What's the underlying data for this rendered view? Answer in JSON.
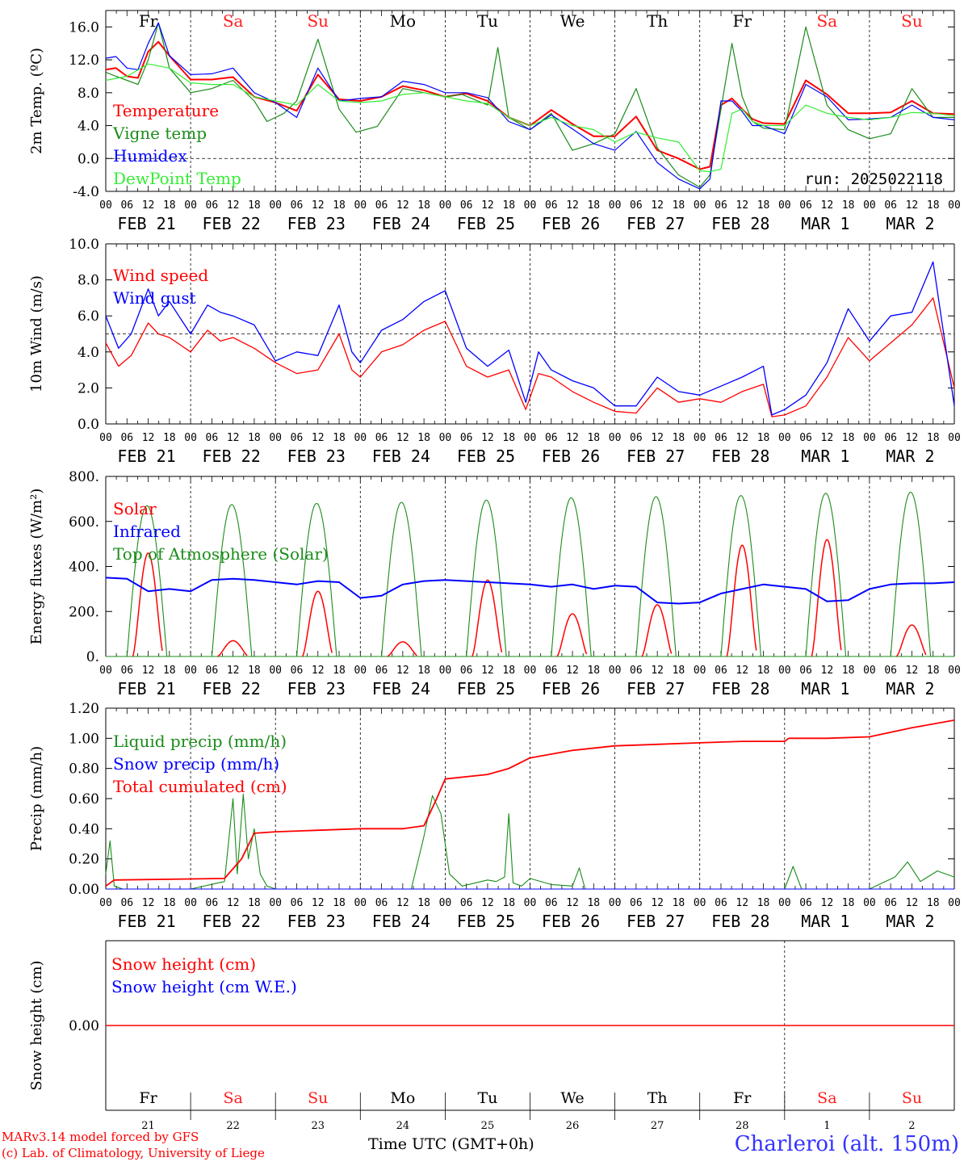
{
  "footer": {
    "model_credit": "MARv3.14 model forced by GFS",
    "lab_credit": "(c) Lab. of Climatology, University of Liege",
    "time_axis_label": "Time UTC (GMT+0h)",
    "station": "Charleroi (alt. 150m)"
  },
  "colors": {
    "red": "#ff0000",
    "green": "#1a8c1a",
    "blue": "#0000ff",
    "lightgreen": "#33ee33",
    "weekend": "#ff2020",
    "grid": "#000000"
  },
  "time_axis": {
    "hour_ticks": [
      "00",
      "06",
      "12",
      "18"
    ],
    "days": [
      "FEB 21",
      "FEB 22",
      "FEB 23",
      "FEB 24",
      "FEB 25",
      "FEB 26",
      "FEB 27",
      "FEB 28",
      "MAR  1",
      "MAR  2"
    ],
    "weekdays": [
      "Fr",
      "Sa",
      "Su",
      "Mo",
      "Tu",
      "We",
      "Th",
      "Fr",
      "Sa",
      "Su"
    ],
    "weekend_flags": [
      false,
      true,
      true,
      false,
      false,
      false,
      false,
      false,
      true,
      true
    ],
    "day_numbers": [
      "21",
      "22",
      "23",
      "24",
      "25",
      "26",
      "27",
      "28",
      "1",
      "2"
    ]
  },
  "chart_data": [
    {
      "type": "line",
      "ylabel": "2m Temp. (ºC)",
      "ylim": [
        -4,
        18
      ],
      "yticks": [
        "-4.0",
        "0.0",
        "4.0",
        "8.0",
        "12.0",
        "16.0"
      ],
      "ytick_values": [
        -4,
        0,
        4,
        8,
        12,
        16
      ],
      "annotation": "run: 2025022118",
      "x_unit": "days from FEB 21 00 UTC",
      "series": [
        {
          "name": "Temperature",
          "color": "red",
          "x": [
            0,
            0.12,
            0.25,
            0.38,
            0.5,
            0.62,
            0.75,
            1.0,
            1.25,
            1.5,
            1.75,
            2.0,
            2.25,
            2.5,
            2.75,
            3.0,
            3.25,
            3.5,
            3.75,
            4.0,
            4.25,
            4.5,
            4.75,
            5.0,
            5.25,
            5.5,
            5.75,
            6.0,
            6.25,
            6.5,
            6.75,
            7.0,
            7.12,
            7.25,
            7.38,
            7.5,
            7.62,
            7.75,
            8.0,
            8.25,
            8.5,
            8.75,
            9.0,
            9.25,
            9.5,
            9.75,
            10.0
          ],
          "y": [
            10.8,
            11,
            10,
            9.8,
            13,
            14.2,
            12.5,
            9.6,
            9.6,
            9.9,
            7.5,
            6.8,
            5.8,
            10.2,
            7.2,
            7,
            7.5,
            8.8,
            8.3,
            7.5,
            7.9,
            7,
            5,
            4,
            5.9,
            4.2,
            2.7,
            2.7,
            5.1,
            1,
            0,
            -1.3,
            -1,
            6.5,
            7.3,
            6,
            4.8,
            4.3,
            4.2,
            9.5,
            7.8,
            5.5,
            5.5,
            5.6,
            7,
            5.5,
            5.4
          ]
        },
        {
          "name": "Vigne temp",
          "color": "green",
          "x": [
            0,
            0.12,
            0.25,
            0.38,
            0.5,
            0.62,
            0.75,
            1.0,
            1.25,
            1.5,
            1.75,
            1.9,
            2.1,
            2.25,
            2.5,
            2.75,
            2.95,
            3.2,
            3.5,
            3.75,
            4.0,
            4.2,
            4.5,
            4.62,
            4.75,
            5.0,
            5.25,
            5.5,
            5.75,
            6.0,
            6.25,
            6.5,
            6.75,
            7.0,
            7.12,
            7.25,
            7.38,
            7.5,
            7.62,
            7.75,
            8.0,
            8.25,
            8.5,
            8.75,
            9.0,
            9.25,
            9.5,
            9.75,
            10.0
          ],
          "y": [
            10.5,
            10,
            9.5,
            9,
            12,
            16.5,
            11,
            8,
            8.5,
            9.5,
            7,
            4.5,
            5.5,
            7,
            14.5,
            6,
            3.2,
            3.9,
            8.5,
            8,
            7.5,
            7.8,
            6.5,
            13.5,
            5,
            3.5,
            5.5,
            1,
            1.8,
            3,
            8.5,
            1.3,
            -2,
            -3.5,
            -2,
            6,
            14,
            7.5,
            4.5,
            3.7,
            3.5,
            16,
            6.5,
            3.5,
            2.4,
            3,
            8.5,
            5,
            5
          ]
        },
        {
          "name": "Humidex",
          "color": "blue",
          "x": [
            0,
            0.12,
            0.25,
            0.38,
            0.5,
            0.62,
            0.75,
            1.0,
            1.25,
            1.5,
            1.75,
            2.0,
            2.25,
            2.5,
            2.75,
            3.0,
            3.25,
            3.5,
            3.75,
            4.0,
            4.25,
            4.5,
            4.75,
            5.0,
            5.25,
            5.5,
            5.75,
            6.0,
            6.25,
            6.5,
            6.75,
            7.0,
            7.12,
            7.25,
            7.38,
            7.5,
            7.62,
            7.75,
            8.0,
            8.25,
            8.5,
            8.75,
            9.0,
            9.25,
            9.5,
            9.75,
            10.0
          ],
          "y": [
            12.2,
            12.4,
            11,
            10.8,
            14,
            16.5,
            12.5,
            10.2,
            10.3,
            11,
            8,
            6.8,
            5,
            11,
            7,
            7.3,
            7.5,
            9.4,
            9,
            8,
            8,
            7.4,
            4.5,
            3.5,
            5.3,
            3.6,
            1.8,
            1,
            3.3,
            -0.5,
            -2.5,
            -3.7,
            -2.5,
            7,
            7,
            5.7,
            4,
            4,
            3,
            9,
            7.5,
            4.7,
            4.8,
            5,
            6.5,
            5,
            4.7
          ]
        },
        {
          "name": "DewPoint Temp",
          "color": "lightgreen",
          "x": [
            0,
            0.25,
            0.5,
            0.75,
            1.0,
            1.25,
            1.5,
            1.75,
            2.0,
            2.25,
            2.5,
            2.75,
            3.0,
            3.25,
            3.5,
            3.75,
            4.0,
            4.25,
            4.5,
            4.75,
            5.0,
            5.25,
            5.5,
            5.75,
            6.0,
            6.25,
            6.5,
            6.75,
            7.0,
            7.12,
            7.25,
            7.38,
            7.5,
            7.62,
            7.75,
            8.0,
            8.25,
            8.5,
            8.75,
            9.0,
            9.25,
            9.5,
            9.75,
            10.0
          ],
          "y": [
            9.5,
            10,
            11.5,
            11,
            9.2,
            9,
            9,
            7.5,
            7,
            6.5,
            9,
            7,
            6.8,
            7,
            7.8,
            8,
            7.5,
            7,
            6.7,
            5,
            4,
            5,
            4,
            3.5,
            2,
            3.2,
            2.5,
            2,
            -1.5,
            -1.6,
            -1.3,
            5.5,
            6,
            4.5,
            4,
            4,
            6.5,
            5.5,
            5,
            4.7,
            5,
            5.6,
            5.5,
            5.2
          ]
        }
      ]
    },
    {
      "type": "line",
      "ylabel": "10m Wind (m/s)",
      "ylim": [
        0,
        10
      ],
      "yticks": [
        "0.0",
        "2.0",
        "4.0",
        "6.0",
        "8.0",
        "10.0"
      ],
      "ytick_values": [
        0,
        2,
        4,
        6,
        8,
        10
      ],
      "reference_line": 5,
      "x_unit": "days from FEB 21 00 UTC",
      "series": [
        {
          "name": "Wind speed",
          "color": "red",
          "x": [
            0,
            0.15,
            0.3,
            0.5,
            0.62,
            0.75,
            1.0,
            1.2,
            1.35,
            1.5,
            1.75,
            2.0,
            2.25,
            2.5,
            2.75,
            2.9,
            3.0,
            3.25,
            3.5,
            3.75,
            4.0,
            4.25,
            4.5,
            4.75,
            4.95,
            5.1,
            5.25,
            5.5,
            5.75,
            6.0,
            6.25,
            6.5,
            6.75,
            7.0,
            7.25,
            7.5,
            7.75,
            7.85,
            8.0,
            8.25,
            8.5,
            8.75,
            9.0,
            9.25,
            9.5,
            9.75,
            10.0
          ],
          "y": [
            4.5,
            3.2,
            3.8,
            5.6,
            5,
            4.8,
            4,
            5.2,
            4.6,
            4.8,
            4.2,
            3.4,
            2.8,
            3,
            5,
            3,
            2.6,
            4,
            4.4,
            5.2,
            5.7,
            3.2,
            2.6,
            3,
            0.8,
            2.8,
            2.6,
            1.8,
            1.2,
            0.7,
            0.6,
            2,
            1.2,
            1.4,
            1.2,
            1.8,
            2.2,
            0.4,
            0.5,
            1,
            2.6,
            4.8,
            3.5,
            4.5,
            5.5,
            7,
            2
          ]
        },
        {
          "name": "Wind gust",
          "color": "blue",
          "x": [
            0,
            0.15,
            0.3,
            0.5,
            0.62,
            0.75,
            1.0,
            1.2,
            1.35,
            1.5,
            1.75,
            2.0,
            2.25,
            2.5,
            2.75,
            2.9,
            3.0,
            3.25,
            3.5,
            3.75,
            4.0,
            4.25,
            4.5,
            4.75,
            4.95,
            5.1,
            5.25,
            5.5,
            5.75,
            6.0,
            6.25,
            6.5,
            6.75,
            7.0,
            7.25,
            7.5,
            7.75,
            7.85,
            8.0,
            8.25,
            8.5,
            8.75,
            9.0,
            9.25,
            9.5,
            9.75,
            10.0
          ],
          "y": [
            6,
            4.2,
            5,
            7.5,
            6,
            6.8,
            5,
            6.6,
            6.2,
            6,
            5.5,
            3.5,
            4,
            3.8,
            6.6,
            4,
            3.4,
            5.2,
            5.8,
            6.8,
            7.4,
            4.2,
            3.2,
            4.1,
            1.2,
            4,
            3,
            2.4,
            2,
            1,
            1,
            2.6,
            1.8,
            1.6,
            2.1,
            2.6,
            3.2,
            0.5,
            0.8,
            1.6,
            3.4,
            6.4,
            4.6,
            6,
            6.2,
            9,
            1
          ]
        }
      ]
    },
    {
      "type": "line",
      "ylabel": "Energy fluxes (W/m²)",
      "ylim": [
        0,
        800
      ],
      "yticks": [
        "0.",
        "200.",
        "400.",
        "600.",
        "800."
      ],
      "ytick_values": [
        0,
        200,
        400,
        600,
        800
      ],
      "x_unit": "days from FEB 21 00 UTC",
      "series": [
        {
          "name": "Solar",
          "color": "red",
          "day_peaks": [
            460,
            70,
            290,
            65,
            340,
            190,
            230,
            495,
            520,
            140
          ]
        },
        {
          "name": "Infrared",
          "color": "blue",
          "x": [
            0,
            0.25,
            0.5,
            0.75,
            1.0,
            1.25,
            1.5,
            1.75,
            2.0,
            2.25,
            2.5,
            2.75,
            3.0,
            3.25,
            3.5,
            3.75,
            4.0,
            4.25,
            4.5,
            4.75,
            5.0,
            5.25,
            5.5,
            5.75,
            6.0,
            6.25,
            6.5,
            6.75,
            7.0,
            7.25,
            7.5,
            7.75,
            8.0,
            8.25,
            8.5,
            8.75,
            9.0,
            9.25,
            9.5,
            9.75,
            10.0
          ],
          "y": [
            350,
            345,
            290,
            300,
            290,
            340,
            345,
            340,
            330,
            320,
            335,
            330,
            260,
            270,
            320,
            335,
            340,
            335,
            330,
            325,
            320,
            310,
            320,
            300,
            315,
            310,
            240,
            235,
            240,
            280,
            300,
            320,
            310,
            300,
            245,
            250,
            300,
            320,
            325,
            325,
            330
          ]
        },
        {
          "name": "Top of Atmosphere (Solar)",
          "color": "green",
          "day_peaks": [
            670,
            675,
            680,
            685,
            695,
            705,
            710,
            715,
            725,
            730
          ]
        }
      ]
    },
    {
      "type": "line",
      "ylabel": "Precip (mm/h)",
      "ylim": [
        0,
        1.2
      ],
      "yticks": [
        "0.00",
        "0.20",
        "0.40",
        "0.60",
        "0.80",
        "1.00",
        "1.20"
      ],
      "ytick_values": [
        0,
        0.2,
        0.4,
        0.6,
        0.8,
        1.0,
        1.2
      ],
      "x_unit": "days from FEB 21 00 UTC",
      "series": [
        {
          "name": "Liquid precip (mm/h)",
          "color": "green",
          "x": [
            0,
            0.05,
            0.1,
            0.2,
            1.0,
            1.4,
            1.5,
            1.55,
            1.62,
            1.68,
            1.75,
            1.82,
            1.9,
            2.0,
            2.5,
            3.0,
            3.6,
            3.75,
            3.85,
            3.95,
            4.05,
            4.2,
            4.5,
            4.6,
            4.7,
            4.75,
            4.8,
            4.9,
            5.0,
            5.25,
            5.5,
            5.58,
            5.65,
            6.0,
            6.5,
            7.0,
            7.5,
            8.0,
            8.1,
            8.2,
            9.0,
            9.3,
            9.45,
            9.6,
            9.8,
            10.0
          ],
          "y": [
            0.1,
            0.32,
            0.02,
            0,
            0,
            0.05,
            0.6,
            0.1,
            0.63,
            0.2,
            0.4,
            0.1,
            0.02,
            0,
            0,
            0,
            0,
            0.35,
            0.62,
            0.5,
            0.1,
            0.02,
            0.06,
            0.05,
            0.08,
            0.5,
            0.04,
            0.02,
            0.07,
            0.03,
            0.02,
            0.14,
            0,
            0,
            0,
            0,
            0,
            0,
            0.15,
            0,
            0,
            0.08,
            0.18,
            0.05,
            0.12,
            0.08
          ]
        },
        {
          "name": "Snow precip (mm/h)",
          "color": "blue",
          "x": [
            0,
            10
          ],
          "y": [
            0,
            0
          ]
        },
        {
          "name": "Total cumulated (cm)",
          "color": "red",
          "x": [
            0,
            0.1,
            1.4,
            1.6,
            1.75,
            2.0,
            2.5,
            3.0,
            3.5,
            3.75,
            3.9,
            4.0,
            4.5,
            4.75,
            5.0,
            5.5,
            6.0,
            6.5,
            7.0,
            7.5,
            8.0,
            8.05,
            8.5,
            9.0,
            9.5,
            10.0
          ],
          "y": [
            0.02,
            0.06,
            0.07,
            0.2,
            0.37,
            0.38,
            0.39,
            0.4,
            0.4,
            0.42,
            0.6,
            0.73,
            0.76,
            0.8,
            0.87,
            0.92,
            0.95,
            0.96,
            0.97,
            0.98,
            0.98,
            1.0,
            1.0,
            1.01,
            1.07,
            1.12
          ]
        }
      ]
    },
    {
      "type": "line",
      "ylabel": "Snow height (cm)",
      "ytick": "0.00",
      "x_unit": "days from FEB 21 00 UTC",
      "series": [
        {
          "name": "Snow height (cm)",
          "color": "red",
          "x": [
            0,
            10
          ],
          "y": [
            0,
            0
          ]
        },
        {
          "name": "Snow height (cm W.E.)",
          "color": "blue",
          "x": [
            0,
            10
          ],
          "y": [
            0,
            0
          ]
        }
      ]
    }
  ]
}
